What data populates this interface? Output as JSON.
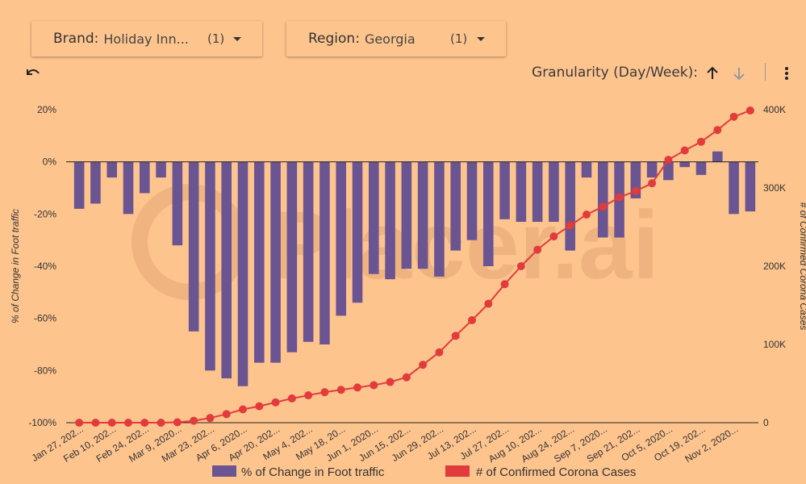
{
  "filters": {
    "brand": {
      "label": "Brand:",
      "value": "Holiday Inn...",
      "count": "(1)"
    },
    "region": {
      "label": "Region:",
      "value": "Georgia",
      "count": "(1)"
    }
  },
  "toolbar": {
    "granularity_label": "Granularity (Day/Week):",
    "undo_icon": "undo-icon",
    "sort_up_icon": "arrow-up-icon",
    "sort_down_icon": "arrow-down-icon",
    "more_icon": "more-vert-icon"
  },
  "watermark": "Placer.ai",
  "colors": {
    "bar": "#6a5491",
    "line": "#e23b3b",
    "background": "#fec48e"
  },
  "chart_data": {
    "type": "bar+line",
    "x_tick_labels": [
      "Jan 27, 202...",
      "Feb 10, 202...",
      "Feb 24, 202...",
      "Mar 9, 2020...",
      "Mar 23, 202...",
      "Apr 6, 2020...",
      "Apr 20, 202...",
      "May 4, 202...",
      "May 18, 20...",
      "Jun 1, 2020...",
      "Jun 15, 202...",
      "Jun 29, 202...",
      "Jul 13, 202...",
      "Jul 27, 202...",
      "Aug 10, 202...",
      "Aug 24, 202...",
      "Sep 7, 2020...",
      "Sep 21, 202...",
      "Oct 5, 2020...",
      "Oct 19, 202...",
      "Nov 2, 2020..."
    ],
    "y_left": {
      "label": "% of Change in Foot traffic",
      "ticks": [
        "20%",
        "0%",
        "-20%",
        "-40%",
        "-60%",
        "-80%",
        "-100%"
      ],
      "range": [
        -100,
        20
      ]
    },
    "y_right": {
      "label": "# of Confirmed Corona Cases",
      "ticks": [
        "400K",
        "300K",
        "200K",
        "100K",
        "0"
      ],
      "range": [
        0,
        400000
      ]
    },
    "series": [
      {
        "name": "% of Change in Foot traffic",
        "type": "bar",
        "values": [
          -18,
          -16,
          -6,
          -20,
          -12,
          -6,
          -32,
          -65,
          -80,
          -83,
          -86,
          -77,
          -77,
          -73,
          -69,
          -70,
          -59,
          -54,
          -43,
          -45,
          -41,
          -41,
          -44,
          -34,
          -30,
          -40,
          -22,
          -23,
          -23,
          -23,
          -34,
          -6,
          -29,
          -29,
          -14,
          -6,
          -7,
          -2,
          -5,
          4,
          -20,
          -19
        ]
      },
      {
        "name": "# of Confirmed Corona Cases",
        "type": "line",
        "values": [
          0,
          0,
          0,
          0,
          0,
          0,
          500,
          2500,
          6000,
          11000,
          17000,
          21000,
          26000,
          31000,
          35000,
          39000,
          42000,
          45000,
          48000,
          52000,
          58000,
          74000,
          90000,
          111000,
          131000,
          152000,
          177000,
          200000,
          221000,
          238000,
          252000,
          266000,
          276000,
          288000,
          296000,
          306000,
          336000,
          348000,
          359000,
          374000,
          391000,
          399000
        ]
      }
    ],
    "legend_position": "bottom",
    "grid": false
  }
}
